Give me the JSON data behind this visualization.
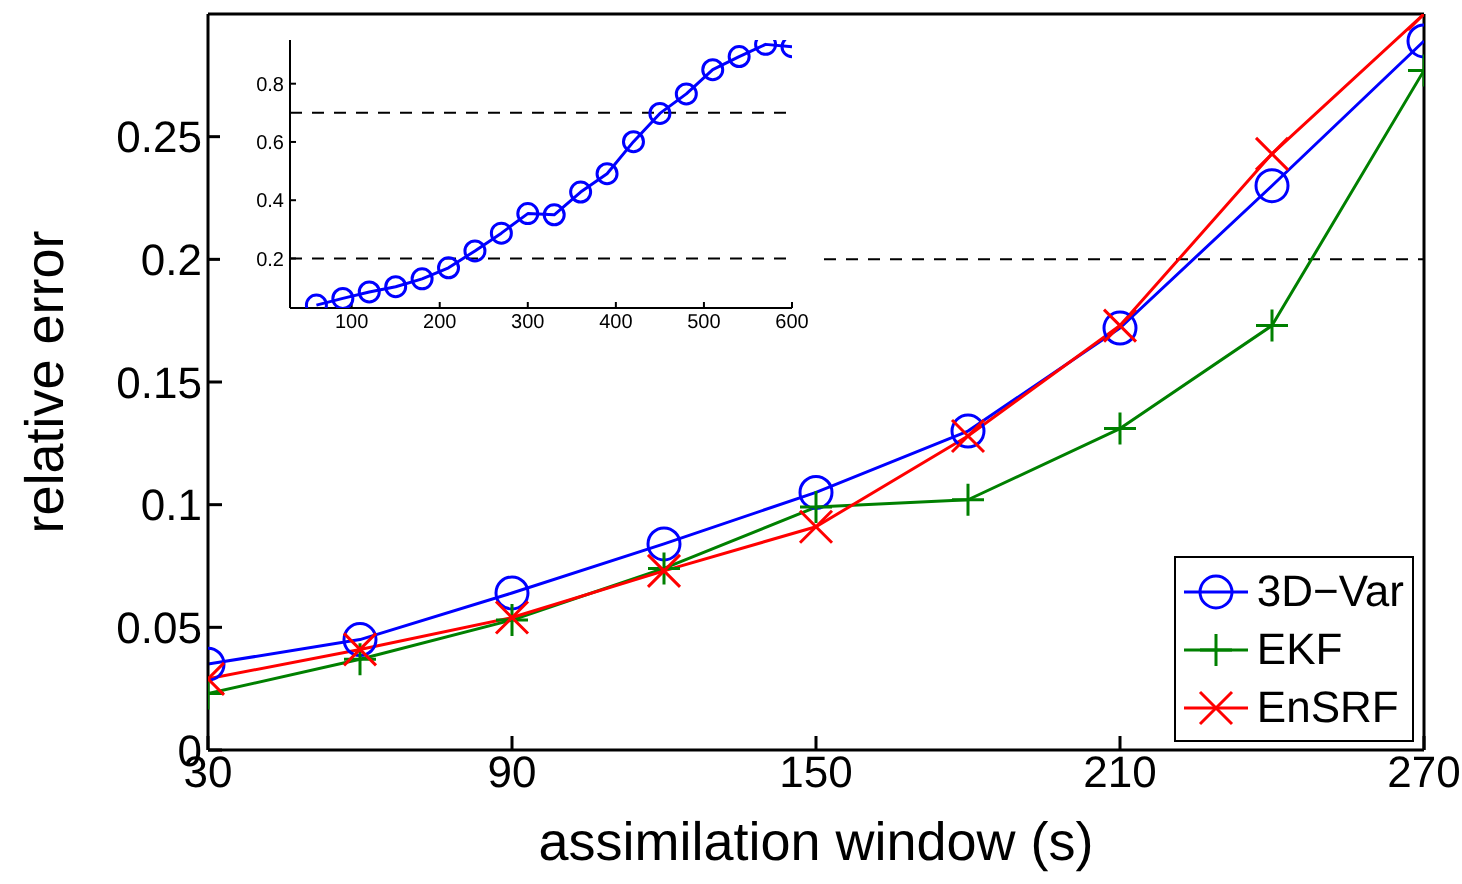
{
  "chart_data": [
    {
      "type": "line",
      "xlabel": "assimilation window (s)",
      "ylabel": "relative error",
      "x": [
        30,
        60,
        90,
        120,
        150,
        180,
        210,
        240,
        270
      ],
      "xlim": [
        30,
        270
      ],
      "xticks": [
        30,
        90,
        150,
        210,
        270
      ],
      "ylim": [
        0,
        0.3
      ],
      "yticks": [
        0,
        0.05,
        0.1,
        0.15,
        0.2,
        0.25
      ],
      "legend": "bottom right",
      "line_style": "solid",
      "series": [
        {
          "name": "3D−Var",
          "color": "#0000ff",
          "marker": "circle",
          "values": [
            0.035,
            0.045,
            0.064,
            0.084,
            0.105,
            0.13,
            0.172,
            0.23,
            0.289
          ]
        },
        {
          "name": "EKF",
          "color": "#008000",
          "marker": "plus",
          "values": [
            0.023,
            0.037,
            0.053,
            0.074,
            0.099,
            0.102,
            0.131,
            0.173,
            0.277
          ]
        },
        {
          "name": "EnSRF",
          "color": "#ff0000",
          "marker": "x",
          "values": [
            0.029,
            0.041,
            0.054,
            0.073,
            0.091,
            0.128,
            0.173,
            0.243,
            0.3
          ]
        }
      ],
      "ref_lines": [
        {
          "axis": "y",
          "value": 0.2,
          "color": "#000000",
          "line_style": "dashed"
        }
      ]
    },
    {
      "type": "line",
      "x": [
        60,
        90,
        120,
        150,
        180,
        210,
        240,
        270,
        300,
        330,
        360,
        390,
        420,
        450,
        480,
        510,
        540,
        570,
        600
      ],
      "xlim": [
        30,
        600
      ],
      "xticks": [
        100,
        200,
        300,
        400,
        500,
        600
      ],
      "ylim": [
        0.03,
        0.95
      ],
      "yticks": [
        0.2,
        0.4,
        0.6,
        0.8
      ],
      "line_style": "solid",
      "series": [
        {
          "color": "#0000ff",
          "marker": "circle",
          "values": [
            0.04,
            0.063,
            0.085,
            0.103,
            0.13,
            0.168,
            0.226,
            0.287,
            0.354,
            0.35,
            0.428,
            0.491,
            0.601,
            0.698,
            0.765,
            0.848,
            0.893,
            0.935,
            0.927
          ]
        }
      ],
      "ref_lines": [
        {
          "axis": "y",
          "value": 0.2,
          "color": "#000000",
          "line_style": "dashed"
        },
        {
          "axis": "y",
          "value": 0.7,
          "color": "#000000",
          "line_style": "dashed"
        }
      ]
    }
  ]
}
